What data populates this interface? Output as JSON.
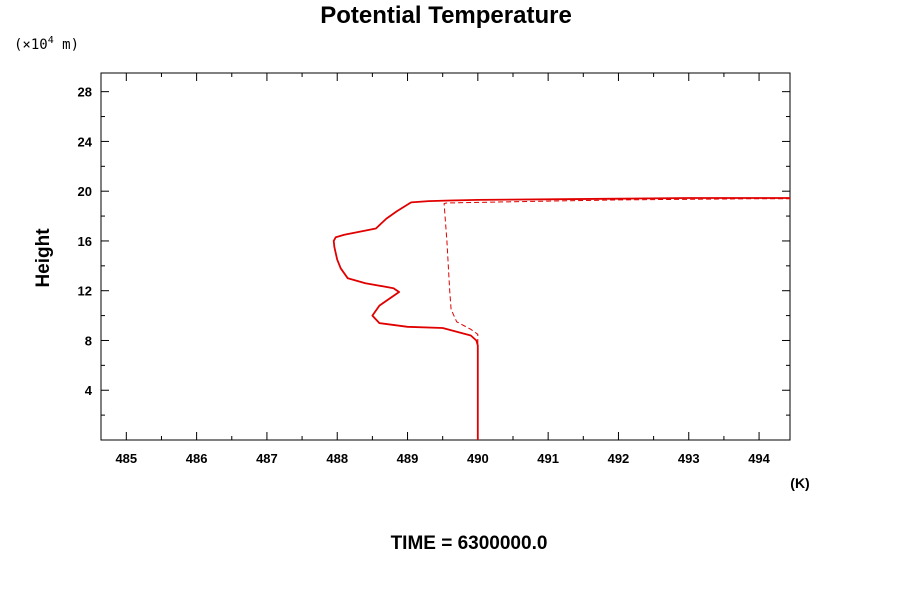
{
  "chart_data": {
    "type": "line",
    "title": "Potential Temperature",
    "ylabel": "Height",
    "y_unit_prefix": "(×10",
    "y_unit_exp": "4",
    "y_unit_suffix": " m)",
    "xunit": "(K)",
    "footer": "TIME = 6300000.0",
    "xlim": [
      484.64,
      494.44
    ],
    "ylim": [
      0,
      29.5
    ],
    "xticks": [
      485,
      486,
      487,
      488,
      489,
      490,
      491,
      492,
      493,
      494
    ],
    "xtick_labels": [
      "485",
      "486",
      "487",
      "488",
      "489",
      "490",
      "491",
      "492",
      "493",
      "494"
    ],
    "yticks": [
      4,
      8,
      12,
      16,
      20,
      24,
      28
    ],
    "ytick_labels": [
      "4",
      "8",
      "12",
      "16",
      "20",
      "24",
      "28"
    ],
    "grid": false,
    "series": [
      {
        "style": "solid",
        "color": "#e00000",
        "x": [
          490.0,
          490.0,
          490.0,
          489.98,
          489.9,
          489.5,
          489.0,
          488.6,
          488.5,
          488.6,
          488.88,
          488.8,
          488.4,
          488.15,
          488.05,
          488.0,
          487.96,
          487.95,
          487.98,
          488.1,
          488.55,
          488.7,
          488.85,
          489.05,
          489.3,
          489.6,
          490.0,
          491.0,
          492.0,
          493.0,
          494.0,
          494.44
        ],
        "y": [
          0.0,
          4.0,
          7.6,
          8.0,
          8.4,
          9.0,
          9.1,
          9.4,
          10.0,
          10.8,
          11.9,
          12.2,
          12.6,
          13.0,
          13.8,
          14.5,
          15.5,
          16.0,
          16.3,
          16.5,
          17.0,
          17.8,
          18.4,
          19.1,
          19.2,
          19.25,
          19.3,
          19.35,
          19.4,
          19.45,
          19.45,
          19.45
        ]
      },
      {
        "style": "dashed",
        "color": "#e00000",
        "x": [
          490.0,
          490.0,
          490.0,
          489.9,
          489.7,
          489.62,
          489.6,
          489.58,
          489.56,
          489.54,
          489.52,
          489.55,
          490.0,
          491.0,
          492.0,
          493.0,
          494.0,
          494.44
        ],
        "y": [
          0.0,
          5.0,
          8.5,
          8.9,
          9.5,
          10.5,
          12.0,
          14.0,
          16.0,
          17.5,
          19.0,
          19.05,
          19.1,
          19.2,
          19.3,
          19.35,
          19.4,
          19.4
        ]
      }
    ]
  }
}
